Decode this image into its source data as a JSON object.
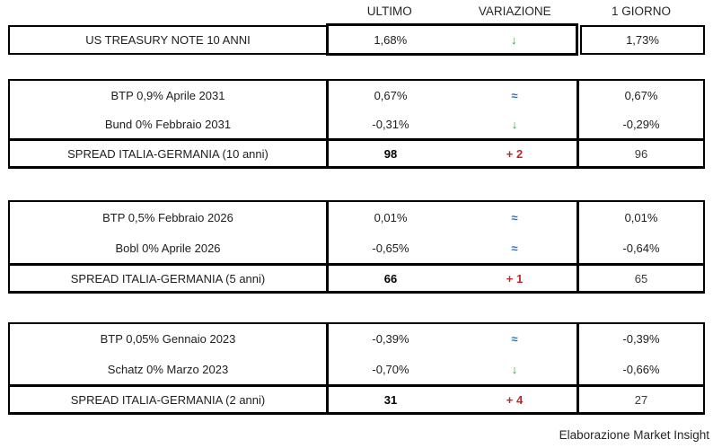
{
  "chart_data": {
    "type": "table",
    "header": [
      "ULTIMO",
      "VARIAZIONE",
      "1 GIORNO"
    ],
    "groups": [
      {
        "rows": [
          {
            "label": "US TREASURY NOTE 10 ANNI",
            "ultimo": "1,68%",
            "variation": "↓",
            "variation_meaning": "down",
            "giorno": "1,73%"
          }
        ]
      },
      {
        "rows": [
          {
            "label": "BTP 0,9% Aprile 2031",
            "ultimo": "0,67%",
            "variation": "≈",
            "variation_meaning": "unchanged",
            "giorno": "0,67%"
          },
          {
            "label": "Bund 0% Febbraio 2031",
            "ultimo": "-0,31%",
            "variation": "↓",
            "variation_meaning": "down",
            "giorno": "-0,29%"
          }
        ],
        "spread": {
          "label": "SPREAD ITALIA-GERMANIA (10 anni)",
          "ultimo": "98",
          "variation": "+ 2",
          "variation_meaning": "up",
          "giorno": "96"
        }
      },
      {
        "rows": [
          {
            "label": "BTP 0,5% Febbraio 2026",
            "ultimo": "0,01%",
            "variation": "≈",
            "variation_meaning": "unchanged",
            "giorno": "0,01%"
          },
          {
            "label": "Bobl 0% Aprile 2026",
            "ultimo": "-0,65%",
            "variation": "≈",
            "variation_meaning": "unchanged",
            "giorno": "-0,64%"
          }
        ],
        "spread": {
          "label": "SPREAD ITALIA-GERMANIA (5 anni)",
          "ultimo": "66",
          "variation": "+ 1",
          "variation_meaning": "up",
          "giorno": "65"
        }
      },
      {
        "rows": [
          {
            "label": "BTP 0,05% Gennaio 2023",
            "ultimo": "-0,39%",
            "variation": "≈",
            "variation_meaning": "unchanged",
            "giorno": "-0,39%"
          },
          {
            "label": "Schatz 0% Marzo 2023",
            "ultimo": "-0,70%",
            "variation": "↓",
            "variation_meaning": "down",
            "giorno": "-0,66%"
          }
        ],
        "spread": {
          "label": "SPREAD ITALIA-GERMANIA (2 anni)",
          "ultimo": "31",
          "variation": "+ 4",
          "variation_meaning": "up",
          "giorno": "27"
        }
      }
    ],
    "footer": "Elaborazione Market Insight"
  },
  "colors": {
    "unchanged_blue": "#2E75B6",
    "down_green": "#27A243",
    "spread_up_red": "#C0262C",
    "border": "#000000",
    "text": "#202020"
  }
}
